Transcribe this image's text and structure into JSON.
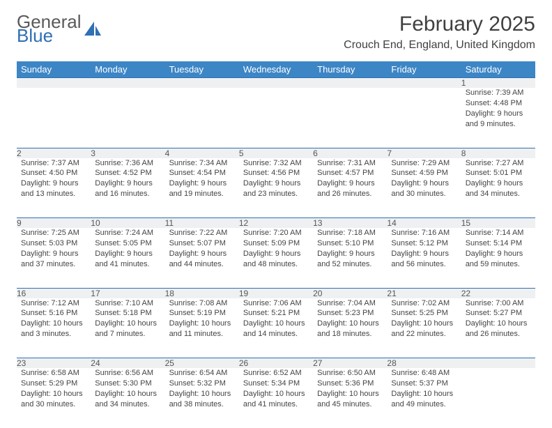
{
  "logo": {
    "word1": "General",
    "word2": "Blue",
    "color1": "#5a5a5a",
    "color2": "#2f6fb3",
    "icon_color": "#2f6fb3"
  },
  "title": "February 2025",
  "location": "Crouch End, England, United Kingdom",
  "colors": {
    "header_bg": "#3d86c6",
    "header_text": "#ffffff",
    "daynum_bg": "#eef0f1",
    "daynum_alt_bg": "#ffffff",
    "border": "#2f6fb3",
    "body_text": "#444444"
  },
  "day_headers": [
    "Sunday",
    "Monday",
    "Tuesday",
    "Wednesday",
    "Thursday",
    "Friday",
    "Saturday"
  ],
  "weeks": [
    [
      null,
      null,
      null,
      null,
      null,
      null,
      {
        "n": "1",
        "sr": "Sunrise: 7:39 AM",
        "ss": "Sunset: 4:48 PM",
        "dl": "Daylight: 9 hours and 9 minutes."
      }
    ],
    [
      {
        "n": "2",
        "sr": "Sunrise: 7:37 AM",
        "ss": "Sunset: 4:50 PM",
        "dl": "Daylight: 9 hours and 13 minutes."
      },
      {
        "n": "3",
        "sr": "Sunrise: 7:36 AM",
        "ss": "Sunset: 4:52 PM",
        "dl": "Daylight: 9 hours and 16 minutes."
      },
      {
        "n": "4",
        "sr": "Sunrise: 7:34 AM",
        "ss": "Sunset: 4:54 PM",
        "dl": "Daylight: 9 hours and 19 minutes."
      },
      {
        "n": "5",
        "sr": "Sunrise: 7:32 AM",
        "ss": "Sunset: 4:56 PM",
        "dl": "Daylight: 9 hours and 23 minutes."
      },
      {
        "n": "6",
        "sr": "Sunrise: 7:31 AM",
        "ss": "Sunset: 4:57 PM",
        "dl": "Daylight: 9 hours and 26 minutes."
      },
      {
        "n": "7",
        "sr": "Sunrise: 7:29 AM",
        "ss": "Sunset: 4:59 PM",
        "dl": "Daylight: 9 hours and 30 minutes."
      },
      {
        "n": "8",
        "sr": "Sunrise: 7:27 AM",
        "ss": "Sunset: 5:01 PM",
        "dl": "Daylight: 9 hours and 34 minutes."
      }
    ],
    [
      {
        "n": "9",
        "sr": "Sunrise: 7:25 AM",
        "ss": "Sunset: 5:03 PM",
        "dl": "Daylight: 9 hours and 37 minutes."
      },
      {
        "n": "10",
        "sr": "Sunrise: 7:24 AM",
        "ss": "Sunset: 5:05 PM",
        "dl": "Daylight: 9 hours and 41 minutes."
      },
      {
        "n": "11",
        "sr": "Sunrise: 7:22 AM",
        "ss": "Sunset: 5:07 PM",
        "dl": "Daylight: 9 hours and 44 minutes."
      },
      {
        "n": "12",
        "sr": "Sunrise: 7:20 AM",
        "ss": "Sunset: 5:09 PM",
        "dl": "Daylight: 9 hours and 48 minutes."
      },
      {
        "n": "13",
        "sr": "Sunrise: 7:18 AM",
        "ss": "Sunset: 5:10 PM",
        "dl": "Daylight: 9 hours and 52 minutes."
      },
      {
        "n": "14",
        "sr": "Sunrise: 7:16 AM",
        "ss": "Sunset: 5:12 PM",
        "dl": "Daylight: 9 hours and 56 minutes."
      },
      {
        "n": "15",
        "sr": "Sunrise: 7:14 AM",
        "ss": "Sunset: 5:14 PM",
        "dl": "Daylight: 9 hours and 59 minutes."
      }
    ],
    [
      {
        "n": "16",
        "sr": "Sunrise: 7:12 AM",
        "ss": "Sunset: 5:16 PM",
        "dl": "Daylight: 10 hours and 3 minutes."
      },
      {
        "n": "17",
        "sr": "Sunrise: 7:10 AM",
        "ss": "Sunset: 5:18 PM",
        "dl": "Daylight: 10 hours and 7 minutes."
      },
      {
        "n": "18",
        "sr": "Sunrise: 7:08 AM",
        "ss": "Sunset: 5:19 PM",
        "dl": "Daylight: 10 hours and 11 minutes."
      },
      {
        "n": "19",
        "sr": "Sunrise: 7:06 AM",
        "ss": "Sunset: 5:21 PM",
        "dl": "Daylight: 10 hours and 14 minutes."
      },
      {
        "n": "20",
        "sr": "Sunrise: 7:04 AM",
        "ss": "Sunset: 5:23 PM",
        "dl": "Daylight: 10 hours and 18 minutes."
      },
      {
        "n": "21",
        "sr": "Sunrise: 7:02 AM",
        "ss": "Sunset: 5:25 PM",
        "dl": "Daylight: 10 hours and 22 minutes."
      },
      {
        "n": "22",
        "sr": "Sunrise: 7:00 AM",
        "ss": "Sunset: 5:27 PM",
        "dl": "Daylight: 10 hours and 26 minutes."
      }
    ],
    [
      {
        "n": "23",
        "sr": "Sunrise: 6:58 AM",
        "ss": "Sunset: 5:29 PM",
        "dl": "Daylight: 10 hours and 30 minutes."
      },
      {
        "n": "24",
        "sr": "Sunrise: 6:56 AM",
        "ss": "Sunset: 5:30 PM",
        "dl": "Daylight: 10 hours and 34 minutes."
      },
      {
        "n": "25",
        "sr": "Sunrise: 6:54 AM",
        "ss": "Sunset: 5:32 PM",
        "dl": "Daylight: 10 hours and 38 minutes."
      },
      {
        "n": "26",
        "sr": "Sunrise: 6:52 AM",
        "ss": "Sunset: 5:34 PM",
        "dl": "Daylight: 10 hours and 41 minutes."
      },
      {
        "n": "27",
        "sr": "Sunrise: 6:50 AM",
        "ss": "Sunset: 5:36 PM",
        "dl": "Daylight: 10 hours and 45 minutes."
      },
      {
        "n": "28",
        "sr": "Sunrise: 6:48 AM",
        "ss": "Sunset: 5:37 PM",
        "dl": "Daylight: 10 hours and 49 minutes."
      },
      null
    ]
  ]
}
